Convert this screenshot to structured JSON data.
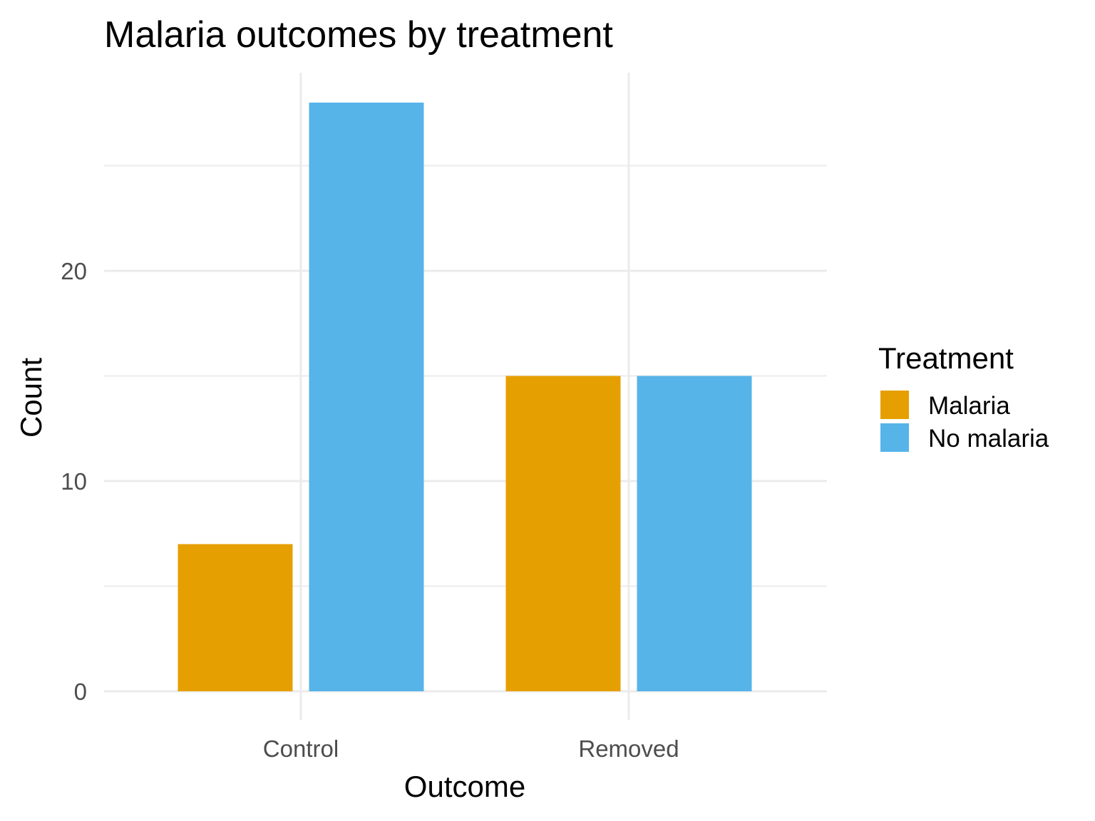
{
  "chart_data": {
    "type": "bar",
    "title": "Malaria outcomes by treatment",
    "xlabel": "Outcome",
    "ylabel": "Count",
    "categories": [
      "Control",
      "Removed"
    ],
    "series": [
      {
        "name": "Malaria",
        "color": "#E69F00",
        "values": [
          7,
          15
        ]
      },
      {
        "name": "No malaria",
        "color": "#56B4E9",
        "values": [
          28,
          15
        ]
      }
    ],
    "ylim": [
      -1.4,
      29.4
    ],
    "yticks": [
      0,
      10,
      20
    ],
    "yminor": [
      5,
      15,
      25
    ],
    "grid": true,
    "legend": {
      "title": "Treatment",
      "position": "right"
    }
  }
}
